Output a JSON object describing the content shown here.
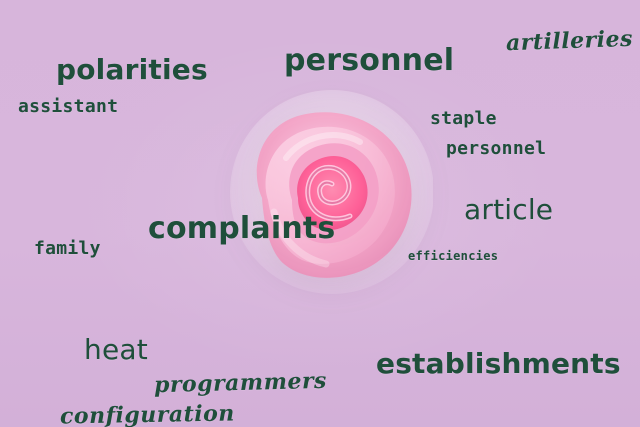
{
  "scene": {
    "background_color": "#d6b4da",
    "text_color": "#1f4f3b",
    "subject": "pink rose"
  },
  "words": {
    "polarities": "polarities",
    "personnel_top": "personnel",
    "artilleries": "artilleries",
    "assistant": "assistant",
    "staple": "staple",
    "personnel_right": "personnel",
    "article": "article",
    "complaints": "complaints",
    "family": "family",
    "efficiencies": "efficiencies",
    "heat": "heat",
    "establishments": "establishments",
    "programmers": "programmers",
    "configuration": "configuration"
  }
}
